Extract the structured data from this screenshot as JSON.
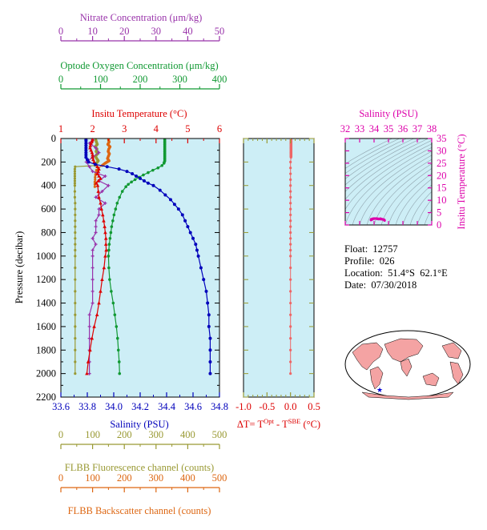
{
  "info": {
    "float_label": "Float:",
    "float_value": "12757",
    "profile_label": "Profile:",
    "profile_value": "026",
    "location_label": "Location:",
    "location_value": "51.4°S  62.1°E",
    "date_label": "Date:",
    "date_value": "07/30/2018"
  },
  "colors": {
    "temperature": "#dd0000",
    "salinity": "#0000bb",
    "nitrate": "#9933aa",
    "oxygen": "#119933",
    "fluorescence": "#999933",
    "backscatter": "#dd6611",
    "delta_t": "#ee6666",
    "ts_marker": "#dd00aa",
    "plot_bg": "#cdeef6",
    "land": "#f4a3a3",
    "ocean": "#ffffff"
  },
  "chart_data": [
    {
      "type": "line",
      "name": "profile",
      "y_axis": {
        "label": "Pressure (decibar)",
        "range": [
          2200,
          0
        ],
        "ticks": [
          "0",
          "200",
          "400",
          "600",
          "800",
          "1000",
          "1200",
          "1400",
          "1600",
          "1800",
          "2000",
          "2200"
        ]
      },
      "x_axes": {
        "temperature": {
          "label": "Insitu Temperature (°C)",
          "range": [
            1,
            6
          ],
          "ticks": [
            "1",
            "2",
            "3",
            "4",
            "5",
            "6"
          ]
        },
        "salinity": {
          "label": "Salinity (PSU)",
          "range": [
            33.6,
            34.8
          ],
          "ticks": [
            "33.6",
            "33.8",
            "34.0",
            "34.2",
            "34.4",
            "34.6",
            "34.8"
          ]
        },
        "nitrate": {
          "label": "Nitrate Concentration (μm/kg)",
          "range": [
            0,
            50
          ],
          "ticks": [
            "0",
            "10",
            "20",
            "30",
            "40",
            "50"
          ]
        },
        "oxygen": {
          "label": "Optode Oxygen Concentration (μm/kg)",
          "range": [
            0,
            400
          ],
          "ticks": [
            "0",
            "100",
            "200",
            "300",
            "400"
          ]
        },
        "fluorescence": {
          "label": "FLBB Fluorescence channel (counts)",
          "range": [
            0,
            500
          ],
          "ticks": [
            "0",
            "100",
            "200",
            "300",
            "400",
            "500"
          ]
        },
        "backscatter": {
          "label": "FLBB Backscatter channel (counts)",
          "range": [
            0,
            500
          ],
          "ticks": [
            "0",
            "100",
            "200",
            "300",
            "400",
            "500"
          ]
        }
      },
      "series": [
        {
          "axis": "salinity",
          "p": [
            10,
            20,
            40,
            60,
            80,
            100,
            120,
            140,
            160,
            180,
            200,
            220,
            240,
            260,
            280,
            300,
            320,
            340,
            360,
            380,
            400,
            440,
            480,
            520,
            560,
            600,
            650,
            700,
            750,
            800,
            850,
            900,
            950,
            1000,
            1100,
            1200,
            1300,
            1400,
            1500,
            1600,
            1700,
            1800,
            1900,
            2000
          ],
          "v": [
            33.79,
            33.79,
            33.79,
            33.79,
            33.79,
            33.79,
            33.79,
            33.79,
            33.79,
            33.8,
            33.81,
            33.86,
            33.95,
            34.04,
            34.1,
            34.14,
            34.17,
            34.2,
            34.23,
            34.26,
            34.3,
            34.35,
            34.39,
            34.43,
            34.46,
            34.49,
            34.52,
            34.54,
            34.56,
            34.58,
            34.6,
            34.62,
            34.63,
            34.64,
            34.66,
            34.68,
            34.7,
            34.71,
            34.72,
            34.72,
            34.73,
            34.73,
            34.73,
            34.73
          ]
        },
        {
          "axis": "temperature",
          "p": [
            10,
            20,
            40,
            60,
            80,
            100,
            120,
            140,
            160,
            180,
            200,
            220,
            240,
            260,
            280,
            300,
            320,
            340,
            360,
            380,
            400,
            450,
            500,
            550,
            600,
            650,
            700,
            750,
            800,
            850,
            900,
            950,
            1000,
            1100,
            1200,
            1300,
            1400,
            1500,
            1600,
            1700,
            1800,
            1900,
            2000
          ],
          "v": [
            2.0,
            1.98,
            1.95,
            1.93,
            1.92,
            1.95,
            1.98,
            2.0,
            2.0,
            2.02,
            2.05,
            2.1,
            2.15,
            2.2,
            2.18,
            2.15,
            2.2,
            2.25,
            2.18,
            2.12,
            2.16,
            2.18,
            2.2,
            2.25,
            2.28,
            2.32,
            2.35,
            2.38,
            2.4,
            2.42,
            2.42,
            2.43,
            2.4,
            2.36,
            2.3,
            2.25,
            2.2,
            2.14,
            2.05,
            1.98,
            1.92,
            1.86,
            1.82
          ]
        },
        {
          "axis": "nitrate",
          "p": [
            10,
            40,
            80,
            120,
            160,
            200,
            240,
            280,
            320,
            360,
            400,
            450,
            500,
            550,
            600,
            650,
            700,
            750,
            800,
            850,
            900,
            950,
            1000,
            1100,
            1200,
            1300,
            1400,
            1500,
            1600,
            1700,
            1800,
            1900,
            2000
          ],
          "v": [
            10,
            9,
            11,
            12,
            10,
            8,
            9,
            10,
            14,
            12,
            15,
            13,
            11,
            14,
            12,
            12,
            11,
            11,
            11,
            10,
            11,
            10,
            10,
            10,
            10,
            10,
            10,
            9,
            9,
            9,
            9,
            9,
            9
          ]
        },
        {
          "axis": "oxygen",
          "p": [
            10,
            30,
            50,
            70,
            90,
            110,
            130,
            150,
            170,
            190,
            210,
            230,
            250,
            270,
            290,
            310,
            330,
            350,
            370,
            390,
            410,
            450,
            500,
            550,
            600,
            650,
            700,
            750,
            800,
            850,
            900,
            950,
            1000,
            1100,
            1200,
            1300,
            1400,
            1500,
            1600,
            1700,
            1800,
            1900,
            2000
          ],
          "v": [
            262,
            262,
            262,
            262,
            262,
            262,
            262,
            262,
            262,
            262,
            260,
            255,
            245,
            232,
            220,
            208,
            197,
            187,
            178,
            170,
            164,
            155,
            148,
            142,
            138,
            134,
            131,
            128,
            126,
            124,
            122,
            121,
            120,
            121,
            123,
            127,
            132,
            136,
            140,
            143,
            145,
            147,
            148
          ]
        },
        {
          "axis": "fluorescence",
          "p": [
            10,
            30,
            50,
            70,
            90,
            110,
            130,
            150,
            170,
            190,
            210,
            230,
            240,
            260,
            280,
            300,
            320,
            340,
            360,
            380,
            400,
            450,
            500,
            550,
            600,
            650,
            700,
            750,
            800,
            850,
            900,
            950,
            1000,
            1100,
            1200,
            1300,
            1400,
            1500,
            1600,
            1700,
            1800,
            1900,
            2000
          ],
          "v": [
            110,
            112,
            115,
            108,
            114,
            111,
            116,
            109,
            113,
            118,
            112,
            108,
            45,
            44,
            44,
            44,
            44,
            44,
            44,
            44,
            44,
            44,
            44,
            45,
            45,
            45,
            45,
            45,
            45,
            45,
            45,
            45,
            45,
            45,
            45,
            45,
            45,
            45,
            45,
            45,
            45,
            45,
            45
          ]
        },
        {
          "axis": "backscatter",
          "p": [
            10,
            30,
            50,
            70,
            90,
            110,
            130,
            150,
            170,
            190,
            210,
            230,
            250,
            270,
            290,
            310,
            330,
            350,
            370,
            390,
            410
          ],
          "v": [
            150,
            152,
            148,
            155,
            151,
            149,
            153,
            150,
            147,
            152,
            140,
            130,
            118,
            112,
            110,
            109,
            108,
            108,
            107,
            107,
            107
          ]
        }
      ]
    },
    {
      "type": "line",
      "name": "delta_t",
      "x_axis": {
        "label": "ΔT= T",
        "label_sup1": "Opt",
        "label_mid": " - T",
        "label_sup2": "SBE",
        "label_end": " (°C)",
        "range": [
          -1.0,
          0.5
        ],
        "ticks": [
          "-1.0",
          "-0.5",
          "0.0",
          "0.5"
        ]
      },
      "y_range": [
        2200,
        0
      ],
      "series": [
        {
          "p": [
            10,
            40,
            80,
            120,
            160,
            200,
            250,
            300,
            350,
            400,
            450,
            500,
            550,
            600,
            650,
            700,
            750,
            800,
            850,
            900,
            950,
            1000,
            1100,
            1200,
            1300,
            1400,
            1500,
            1600,
            1700,
            1800,
            1900,
            2000
          ],
          "v": [
            0.01,
            0.01,
            0.01,
            0.01,
            0.01,
            0.0,
            0.0,
            0.0,
            0.0,
            0.0,
            0.0,
            0.0,
            0.0,
            0.0,
            0.0,
            0.0,
            0.0,
            0.0,
            0.0,
            0.0,
            0.0,
            0.0,
            0.0,
            0.0,
            0.0,
            0.0,
            0.0,
            0.0,
            0.0,
            0.0,
            0.0,
            0.0
          ]
        }
      ]
    },
    {
      "type": "scatter",
      "name": "ts_diagram",
      "x_axis": {
        "label": "Salinity (PSU)",
        "range": [
          32,
          38
        ],
        "ticks": [
          "32",
          "33",
          "34",
          "35",
          "36",
          "37",
          "38"
        ]
      },
      "y_axis": {
        "label": "Insitu Temperature (°C)",
        "range": [
          0,
          35
        ],
        "ticks": [
          "0",
          "5",
          "10",
          "15",
          "20",
          "25",
          "30",
          "35"
        ]
      },
      "points": {
        "s": [
          33.79,
          33.8,
          33.9,
          34.0,
          34.1,
          34.2,
          34.3,
          34.4,
          34.5,
          34.6,
          34.7,
          34.73,
          34.6,
          34.45,
          34.2,
          34.0,
          33.85
        ],
        "t": [
          2.0,
          2.3,
          2.5,
          2.6,
          2.6,
          2.5,
          2.4,
          2.4,
          2.35,
          2.25,
          2.1,
          1.82,
          2.3,
          2.55,
          2.6,
          2.55,
          2.2
        ]
      }
    }
  ]
}
